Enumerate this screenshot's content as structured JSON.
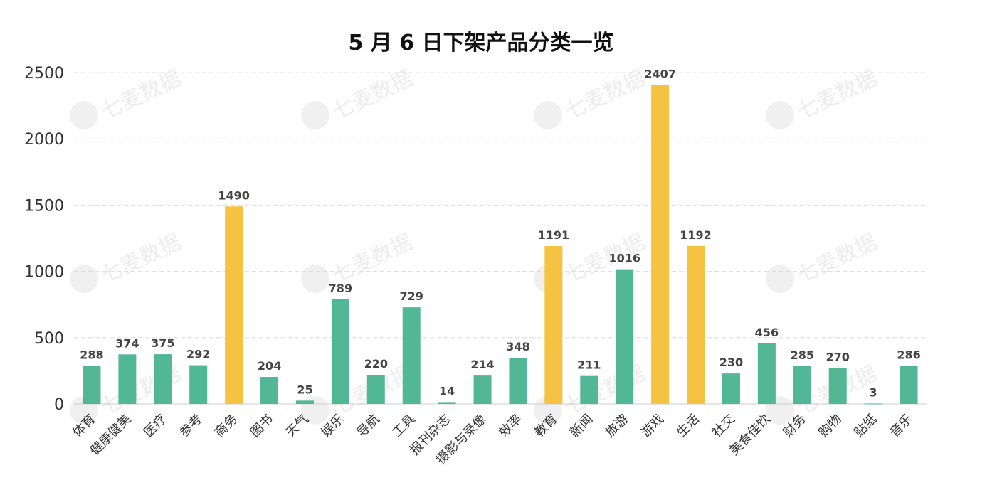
{
  "chart_data": {
    "type": "bar",
    "title": "5 月 6 日下架产品分类一览",
    "categories": [
      "体育",
      "健康健美",
      "医疗",
      "参考",
      "商务",
      "图书",
      "天气",
      "娱乐",
      "导航",
      "工具",
      "报刊杂志",
      "摄影与录像",
      "效率",
      "教育",
      "新闻",
      "旅游",
      "游戏",
      "生活",
      "社交",
      "美食佳饮",
      "财务",
      "购物",
      "贴纸",
      "音乐"
    ],
    "values": [
      288,
      374,
      375,
      292,
      1490,
      204,
      25,
      789,
      220,
      729,
      14,
      214,
      348,
      1191,
      211,
      1016,
      2407,
      1192,
      230,
      456,
      285,
      270,
      3,
      286
    ],
    "highlighted": [
      "商务",
      "教育",
      "游戏",
      "生活"
    ],
    "ylim": [
      0,
      2500
    ],
    "yticks": [
      0,
      500,
      1000,
      1500,
      2000,
      2500
    ],
    "grid": true,
    "xlabel": "",
    "ylabel": "",
    "colors": {
      "default": "#52b795",
      "highlight": "#f5c242"
    }
  },
  "watermark": {
    "text": "七麦数据"
  }
}
